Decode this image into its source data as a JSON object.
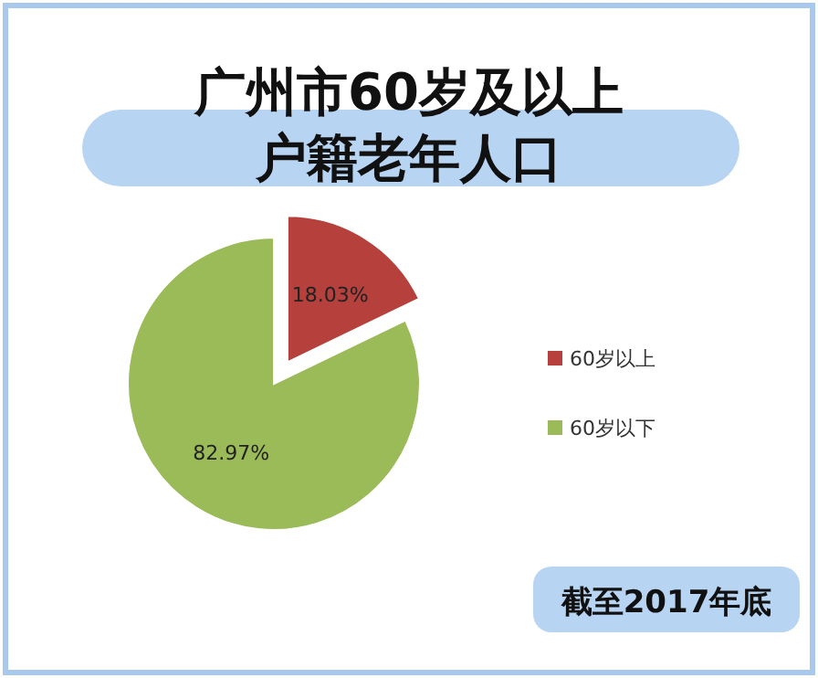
{
  "chart_data": {
    "type": "pie",
    "title": "广州市60岁及以上户籍老年人口",
    "categories": [
      "60岁以上",
      "60岁以下"
    ],
    "values": [
      18.03,
      82.97
    ],
    "colors": [
      "#b5403c",
      "#9bbb59"
    ],
    "value_labels": [
      "18.03%",
      "82.97%"
    ],
    "legend": "right",
    "annotations": [
      "截至2017年底"
    ]
  }
}
